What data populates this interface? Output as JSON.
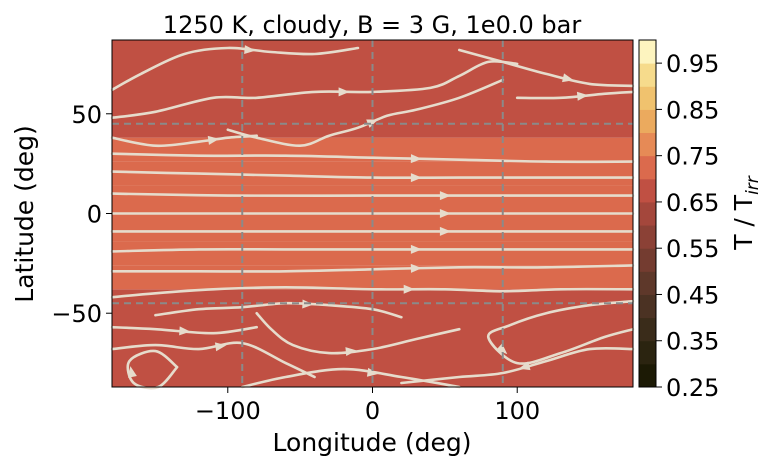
{
  "chart_data": {
    "type": "heatmap",
    "title": "1250 K, cloudy, B = 3 G, 1e0.0 bar",
    "xlabel": "Longitude (deg)",
    "ylabel": "Latitude (deg)",
    "xlim": [
      -180,
      180
    ],
    "ylim": [
      -87,
      87
    ],
    "x_ticks": [
      -100,
      0,
      100
    ],
    "x_tick_labels": [
      "−100",
      "0",
      "100"
    ],
    "y_ticks": [
      -50,
      0,
      50
    ],
    "y_tick_labels": [
      "−50",
      "0",
      "50"
    ],
    "grid": {
      "style": "dashed",
      "color": "#8a8a8a",
      "x": [
        -90,
        0,
        90
      ],
      "y": [
        -45,
        45
      ]
    },
    "colorbar": {
      "label_main": "T / T",
      "label_sub": "irr",
      "min": 0.25,
      "max": 1.0,
      "ticks": [
        0.25,
        0.35,
        0.45,
        0.55,
        0.65,
        0.75,
        0.85,
        0.95
      ],
      "tick_labels": [
        "0.25",
        "0.35",
        "0.45",
        "0.55",
        "0.65",
        "0.75",
        "0.85",
        "0.95"
      ],
      "levels": [
        0.25,
        0.3,
        0.35,
        0.4,
        0.45,
        0.5,
        0.55,
        0.6,
        0.65,
        0.7,
        0.75,
        0.8,
        0.85,
        0.9,
        0.95,
        1.0
      ],
      "colors": [
        "#1c1a05",
        "#2b2410",
        "#3a2c1a",
        "#4b3223",
        "#5e382a",
        "#743c30",
        "#8b4136",
        "#a4473c",
        "#c05043",
        "#db6a4d",
        "#e68a56",
        "#ebaa5e",
        "#f0c26e",
        "#f6db8c",
        "#fdf4bf"
      ]
    },
    "temperature_bands": [
      {
        "lat_range": [
          -87,
          -38
        ],
        "value": 0.68
      },
      {
        "lat_range": [
          -38,
          -26
        ],
        "value": 0.7
      },
      {
        "lat_range": [
          -26,
          -14
        ],
        "value": 0.72
      },
      {
        "lat_range": [
          -14,
          14
        ],
        "value": 0.74
      },
      {
        "lat_range": [
          14,
          26
        ],
        "value": 0.72
      },
      {
        "lat_range": [
          26,
          38
        ],
        "value": 0.7
      },
      {
        "lat_range": [
          38,
          87
        ],
        "value": 0.68
      }
    ],
    "streamline_color": "#e6dccc",
    "streamlines": [
      [
        [
          -180,
          62
        ],
        [
          -160,
          70
        ],
        [
          -130,
          80
        ],
        [
          -100,
          83
        ],
        [
          -70,
          81
        ],
        [
          -40,
          80
        ],
        [
          -10,
          83
        ]
      ],
      [
        [
          -180,
          48
        ],
        [
          -150,
          51
        ],
        [
          -110,
          58
        ],
        [
          -80,
          58
        ],
        [
          -40,
          61
        ],
        [
          0,
          61
        ],
        [
          40,
          63
        ],
        [
          60,
          69
        ],
        [
          80,
          76
        ],
        [
          100,
          75
        ]
      ],
      [
        [
          60,
          82
        ],
        [
          90,
          76
        ],
        [
          120,
          70
        ],
        [
          150,
          65
        ],
        [
          180,
          64
        ]
      ],
      [
        [
          -100,
          42
        ],
        [
          -80,
          38
        ],
        [
          -50,
          34
        ],
        [
          -30,
          39
        ],
        [
          -10,
          43
        ],
        [
          10,
          49
        ],
        [
          30,
          52
        ],
        [
          60,
          58
        ],
        [
          90,
          67
        ]
      ],
      [
        [
          100,
          58
        ],
        [
          130,
          58
        ],
        [
          160,
          60
        ],
        [
          180,
          61
        ]
      ],
      [
        [
          -180,
          38
        ],
        [
          -150,
          34
        ],
        [
          -120,
          36
        ],
        [
          -100,
          38
        ],
        [
          -80,
          39
        ]
      ],
      [
        [
          -180,
          30
        ],
        [
          -120,
          29
        ],
        [
          -60,
          29
        ],
        [
          0,
          28
        ],
        [
          60,
          27
        ],
        [
          120,
          26
        ],
        [
          180,
          26
        ]
      ],
      [
        [
          -180,
          21
        ],
        [
          -120,
          20
        ],
        [
          -60,
          19
        ],
        [
          0,
          18
        ],
        [
          60,
          18
        ],
        [
          120,
          18
        ],
        [
          180,
          18
        ]
      ],
      [
        [
          -180,
          10
        ],
        [
          -100,
          9
        ],
        [
          0,
          9
        ],
        [
          100,
          9
        ],
        [
          180,
          9
        ]
      ],
      [
        [
          -180,
          0
        ],
        [
          -100,
          0
        ],
        [
          0,
          0
        ],
        [
          100,
          0
        ],
        [
          180,
          0
        ]
      ],
      [
        [
          -180,
          -9
        ],
        [
          -100,
          -9
        ],
        [
          0,
          -9
        ],
        [
          100,
          -9
        ],
        [
          180,
          -9
        ]
      ],
      [
        [
          -180,
          -19
        ],
        [
          -120,
          -18
        ],
        [
          -60,
          -18
        ],
        [
          0,
          -18
        ],
        [
          60,
          -18
        ],
        [
          120,
          -18
        ],
        [
          180,
          -18
        ]
      ],
      [
        [
          -180,
          -29
        ],
        [
          -120,
          -29
        ],
        [
          -60,
          -29
        ],
        [
          0,
          -28
        ],
        [
          60,
          -27
        ],
        [
          120,
          -27
        ],
        [
          180,
          -26
        ]
      ],
      [
        [
          -180,
          -42
        ],
        [
          -150,
          -40
        ],
        [
          -110,
          -38
        ],
        [
          -60,
          -37
        ],
        [
          0,
          -38
        ],
        [
          50,
          -38
        ],
        [
          90,
          -39
        ],
        [
          130,
          -38
        ],
        [
          180,
          -38
        ]
      ],
      [
        [
          -150,
          -51
        ],
        [
          -120,
          -48
        ],
        [
          -90,
          -47
        ],
        [
          -60,
          -45
        ],
        [
          -30,
          -46
        ],
        [
          0,
          -48
        ],
        [
          20,
          -52
        ]
      ],
      [
        [
          180,
          -44
        ],
        [
          150,
          -46
        ],
        [
          120,
          -50
        ],
        [
          95,
          -56
        ],
        [
          80,
          -62
        ],
        [
          100,
          -75
        ],
        [
          130,
          -70
        ],
        [
          160,
          -62
        ],
        [
          180,
          -58
        ]
      ],
      [
        [
          -180,
          -57
        ],
        [
          -150,
          -58
        ],
        [
          -110,
          -60
        ],
        [
          -80,
          -57
        ]
      ],
      [
        [
          -80,
          -50
        ],
        [
          -70,
          -58
        ],
        [
          -55,
          -66
        ],
        [
          -30,
          -70
        ],
        [
          0,
          -68
        ],
        [
          30,
          -63
        ],
        [
          60,
          -58
        ]
      ],
      [
        [
          180,
          -68
        ],
        [
          150,
          -68
        ],
        [
          120,
          -74
        ],
        [
          90,
          -80
        ],
        [
          60,
          -82
        ],
        [
          20,
          -85
        ]
      ],
      [
        [
          -180,
          -68
        ],
        [
          -150,
          -66
        ],
        [
          -120,
          -68
        ],
        [
          -90,
          -65
        ],
        [
          -60,
          -75
        ],
        [
          -40,
          -82
        ]
      ],
      [
        [
          -135,
          -77
        ],
        [
          -148,
          -87
        ],
        [
          -165,
          -85
        ],
        [
          -168,
          -74
        ],
        [
          -150,
          -69
        ],
        [
          -135,
          -77
        ]
      ],
      [
        [
          -90,
          -87
        ],
        [
          -60,
          -82
        ],
        [
          -20,
          -78
        ],
        [
          20,
          -82
        ],
        [
          60,
          -87
        ]
      ]
    ]
  }
}
